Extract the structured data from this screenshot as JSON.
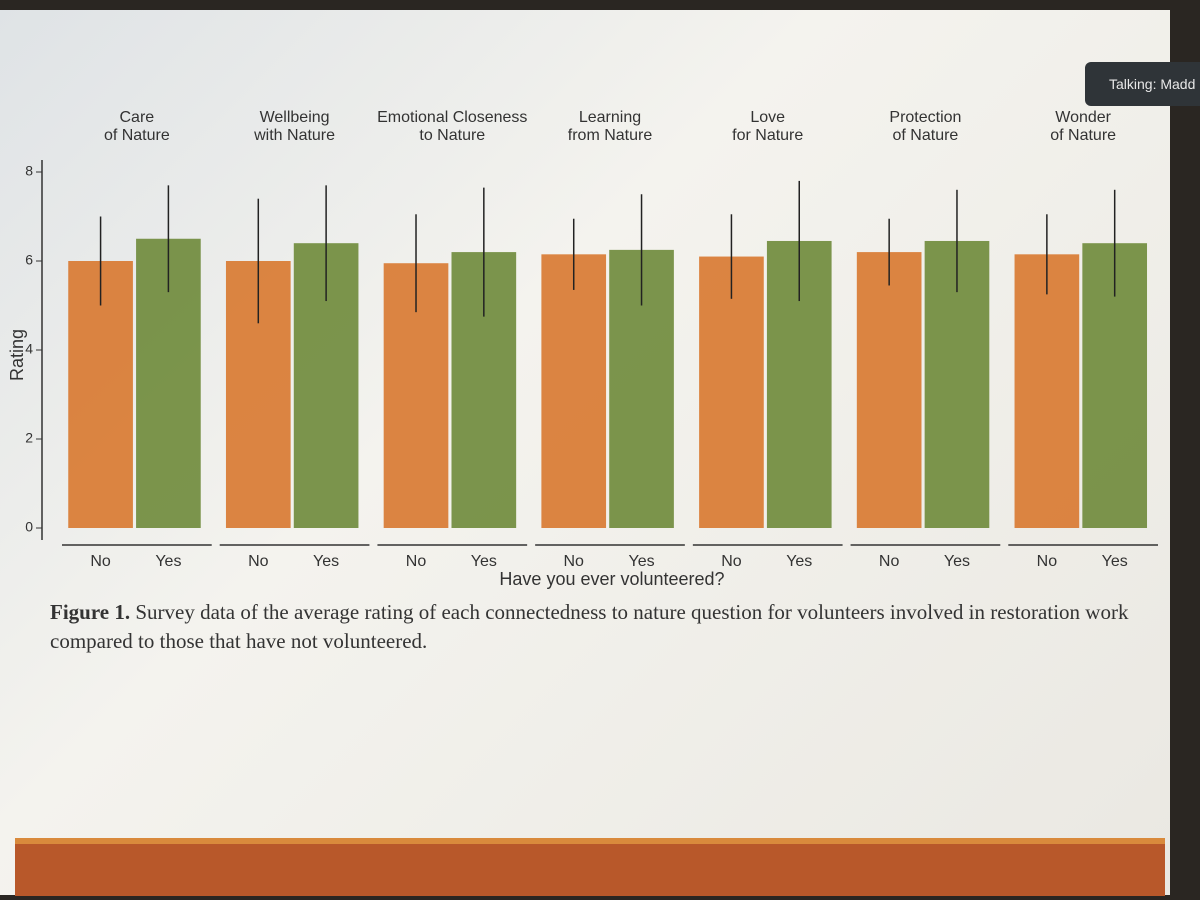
{
  "chart_data": {
    "type": "bar",
    "ylabel": "Rating",
    "xlabel": "Have you ever volunteered?",
    "categories": [
      "No",
      "Yes"
    ],
    "colors": [
      "#d8782f",
      "#6e893a"
    ],
    "ylim": [
      0,
      8
    ],
    "yticks": [
      0,
      2,
      4,
      6,
      8
    ],
    "facets": [
      {
        "title": [
          "Care",
          "of Nature"
        ],
        "values": [
          6.0,
          6.5
        ],
        "errors": [
          1.0,
          1.2
        ]
      },
      {
        "title": [
          "Wellbeing",
          "with Nature"
        ],
        "values": [
          6.0,
          6.4
        ],
        "errors": [
          1.4,
          1.3
        ]
      },
      {
        "title": [
          "Emotional Closeness",
          "to Nature"
        ],
        "values": [
          5.95,
          6.2
        ],
        "errors": [
          1.1,
          1.45
        ]
      },
      {
        "title": [
          "Learning",
          "from Nature"
        ],
        "values": [
          6.15,
          6.25
        ],
        "errors": [
          0.8,
          1.25
        ]
      },
      {
        "title": [
          "Love",
          "for Nature"
        ],
        "values": [
          6.1,
          6.45
        ],
        "errors": [
          0.95,
          1.35
        ]
      },
      {
        "title": [
          "Protection",
          "of Nature"
        ],
        "values": [
          6.2,
          6.45
        ],
        "errors": [
          0.75,
          1.15
        ]
      },
      {
        "title": [
          "Wonder",
          "of Nature"
        ],
        "values": [
          6.15,
          6.4
        ],
        "errors": [
          0.9,
          1.2
        ]
      }
    ]
  },
  "caption": {
    "label": "Figure 1.",
    "text": "Survey data of the average rating of each connectedness to nature question for volunteers involved in restoration work compared to those that have not volunteered."
  },
  "ui": {
    "talking": "Talking: Madd"
  }
}
